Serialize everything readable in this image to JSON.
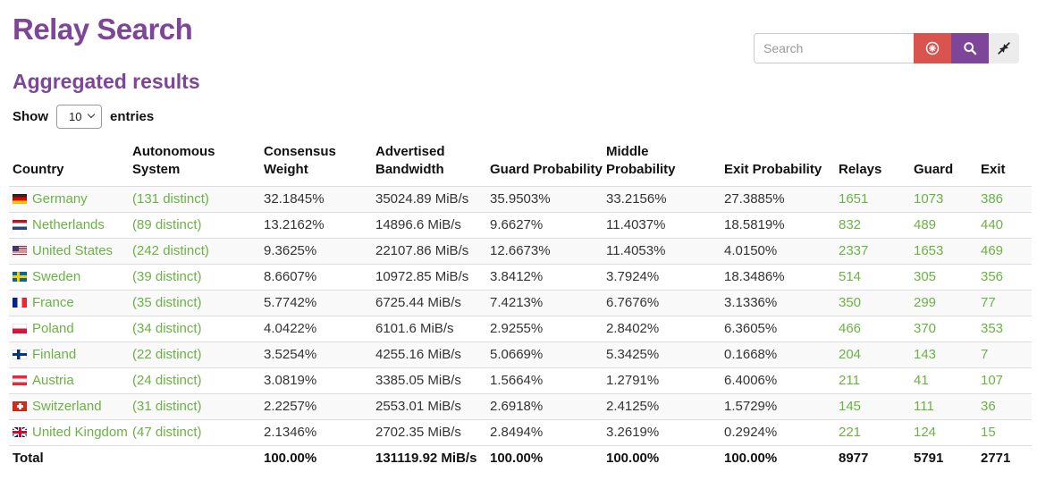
{
  "header": {
    "title": "Relay Search"
  },
  "search": {
    "placeholder": "Search",
    "clear_icon": "circled-asterisk-icon",
    "search_icon": "magnifier-icon",
    "collapse_icon": "compress-arrows-icon"
  },
  "section": {
    "title": "Aggregated results"
  },
  "entries_control": {
    "show_label": "Show",
    "entries_label": "entries",
    "selected": "10",
    "options": [
      "10"
    ]
  },
  "colors": {
    "accent_purple": "#7d4698",
    "link_green": "#6bb244",
    "clear_button_red": "#d9534f",
    "light_button_gray": "#ececec"
  },
  "table": {
    "columns": [
      "Country",
      "Autonomous System",
      "Consensus Weight",
      "Advertised Bandwidth",
      "Guard Probability",
      "Middle Probability",
      "Exit Probability",
      "Relays",
      "Guard",
      "Exit"
    ],
    "rows": [
      {
        "flag": "de",
        "country": "Germany",
        "as_distinct": "(131 distinct)",
        "consensus_weight": "32.1845%",
        "advertised_bandwidth": "35024.89 MiB/s",
        "guard_probability": "35.9503%",
        "middle_probability": "33.2156%",
        "exit_probability": "27.3885%",
        "relays": "1651",
        "guard": "1073",
        "exit": "386"
      },
      {
        "flag": "nl",
        "country": "Netherlands",
        "as_distinct": "(89 distinct)",
        "consensus_weight": "13.2162%",
        "advertised_bandwidth": "14896.6 MiB/s",
        "guard_probability": "9.6627%",
        "middle_probability": "11.4037%",
        "exit_probability": "18.5819%",
        "relays": "832",
        "guard": "489",
        "exit": "440"
      },
      {
        "flag": "us",
        "country": "United States",
        "as_distinct": "(242 distinct)",
        "consensus_weight": "9.3625%",
        "advertised_bandwidth": "22107.86 MiB/s",
        "guard_probability": "12.6673%",
        "middle_probability": "11.4053%",
        "exit_probability": "4.0150%",
        "relays": "2337",
        "guard": "1653",
        "exit": "469"
      },
      {
        "flag": "se",
        "country": "Sweden",
        "as_distinct": "(39 distinct)",
        "consensus_weight": "8.6607%",
        "advertised_bandwidth": "10972.85 MiB/s",
        "guard_probability": "3.8412%",
        "middle_probability": "3.7924%",
        "exit_probability": "18.3486%",
        "relays": "514",
        "guard": "305",
        "exit": "356"
      },
      {
        "flag": "fr",
        "country": "France",
        "as_distinct": "(35 distinct)",
        "consensus_weight": "5.7742%",
        "advertised_bandwidth": "6725.44 MiB/s",
        "guard_probability": "7.4213%",
        "middle_probability": "6.7676%",
        "exit_probability": "3.1336%",
        "relays": "350",
        "guard": "299",
        "exit": "77"
      },
      {
        "flag": "pl",
        "country": "Poland",
        "as_distinct": "(34 distinct)",
        "consensus_weight": "4.0422%",
        "advertised_bandwidth": "6101.6 MiB/s",
        "guard_probability": "2.9255%",
        "middle_probability": "2.8402%",
        "exit_probability": "6.3605%",
        "relays": "466",
        "guard": "370",
        "exit": "353"
      },
      {
        "flag": "fi",
        "country": "Finland",
        "as_distinct": "(22 distinct)",
        "consensus_weight": "3.5254%",
        "advertised_bandwidth": "4255.16 MiB/s",
        "guard_probability": "5.0669%",
        "middle_probability": "5.3425%",
        "exit_probability": "0.1668%",
        "relays": "204",
        "guard": "143",
        "exit": "7"
      },
      {
        "flag": "at",
        "country": "Austria",
        "as_distinct": "(24 distinct)",
        "consensus_weight": "3.0819%",
        "advertised_bandwidth": "3385.05 MiB/s",
        "guard_probability": "1.5664%",
        "middle_probability": "1.2791%",
        "exit_probability": "6.4006%",
        "relays": "211",
        "guard": "41",
        "exit": "107"
      },
      {
        "flag": "ch",
        "country": "Switzerland",
        "as_distinct": "(31 distinct)",
        "consensus_weight": "2.2257%",
        "advertised_bandwidth": "2553.01 MiB/s",
        "guard_probability": "2.6918%",
        "middle_probability": "2.4125%",
        "exit_probability": "1.5729%",
        "relays": "145",
        "guard": "111",
        "exit": "36"
      },
      {
        "flag": "gb",
        "country": "United Kingdom",
        "as_distinct": "(47 distinct)",
        "consensus_weight": "2.1346%",
        "advertised_bandwidth": "2702.35 MiB/s",
        "guard_probability": "2.8494%",
        "middle_probability": "3.2619%",
        "exit_probability": "0.2924%",
        "relays": "221",
        "guard": "124",
        "exit": "15"
      }
    ],
    "total": {
      "label": "Total",
      "as_distinct": "",
      "consensus_weight": "100.00%",
      "advertised_bandwidth": "131119.92 MiB/s",
      "guard_probability": "100.00%",
      "middle_probability": "100.00%",
      "exit_probability": "100.00%",
      "relays": "8977",
      "guard": "5791",
      "exit": "2771"
    }
  }
}
